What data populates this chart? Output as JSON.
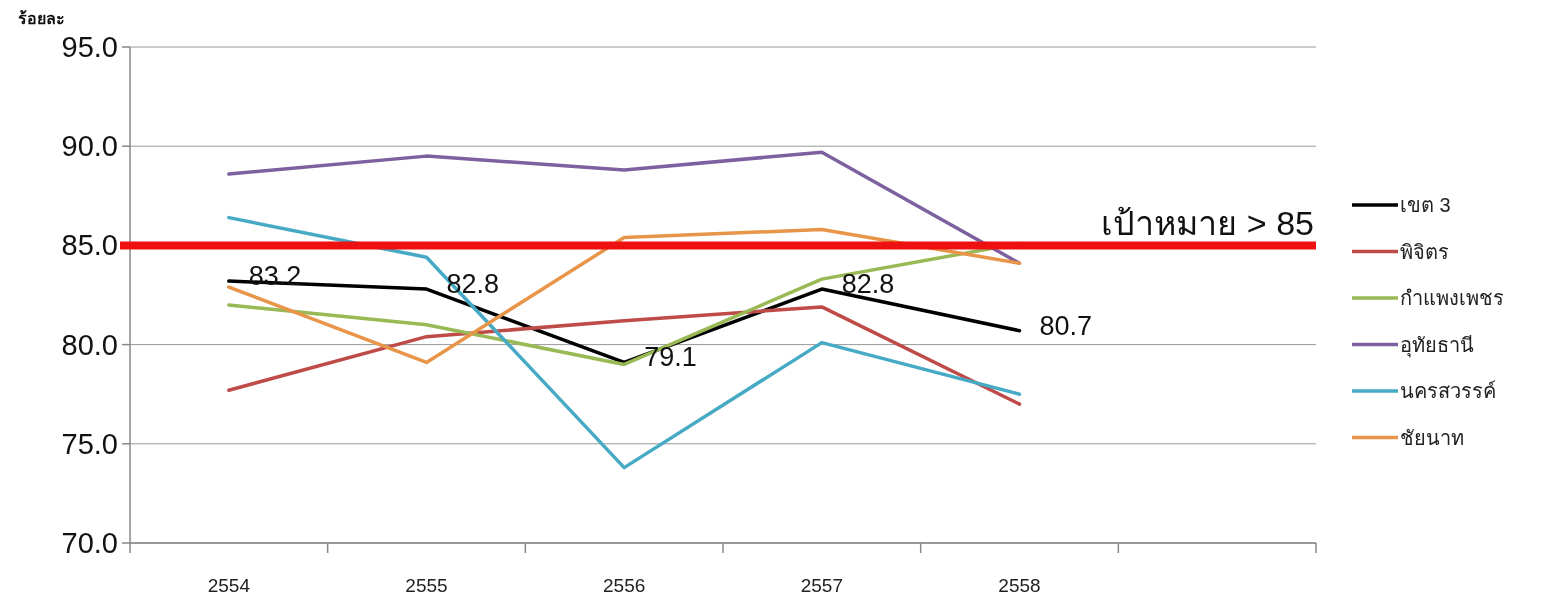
{
  "chart_data": {
    "type": "line",
    "ylabel": "ร้อยละ",
    "categories": [
      "2554",
      "2555",
      "2556",
      "2557",
      "2558",
      null
    ],
    "series": [
      {
        "name": "เขต 3",
        "color": "#000000",
        "values": [
          83.2,
          82.8,
          79.1,
          82.8,
          80.7,
          null
        ],
        "value_labels": [
          "83.2",
          "82.8",
          "79.1",
          "82.8",
          "80.7",
          null
        ]
      },
      {
        "name": "พิจิตร",
        "color": "#be4b48",
        "values": [
          77.7,
          80.4,
          81.2,
          81.9,
          77.0,
          null
        ]
      },
      {
        "name": "กำแพงเพชร",
        "color": "#98b954",
        "values": [
          82.0,
          81.0,
          79.0,
          83.3,
          85.1,
          null
        ]
      },
      {
        "name": "อุทัยธานี",
        "color": "#7d60a0",
        "values": [
          88.6,
          89.5,
          88.8,
          89.7,
          84.1,
          null
        ]
      },
      {
        "name": "นครสวรรค์",
        "color": "#46aac5",
        "values": [
          86.4,
          84.4,
          73.8,
          80.1,
          77.5,
          null
        ]
      },
      {
        "name": "ชัยนาท",
        "color": "#e8954a",
        "values": [
          82.9,
          79.1,
          85.4,
          85.8,
          84.1,
          null
        ]
      }
    ],
    "ylim": [
      70,
      95
    ],
    "yticks": [
      {
        "value": 70,
        "label": "70.0"
      },
      {
        "value": 75,
        "label": "75.0"
      },
      {
        "value": 80,
        "label": "80.0"
      },
      {
        "value": 85,
        "label": "85.0"
      },
      {
        "value": 90,
        "label": "90.0"
      },
      {
        "value": 95,
        "label": "95.0"
      }
    ],
    "ref_lines": [
      {
        "axis": "y",
        "value": 85,
        "label": "เป้าหมาย > 85",
        "color": "#ee1111"
      }
    ],
    "grid": "y",
    "legend": "right",
    "marker": "none",
    "line_style": "solid"
  }
}
